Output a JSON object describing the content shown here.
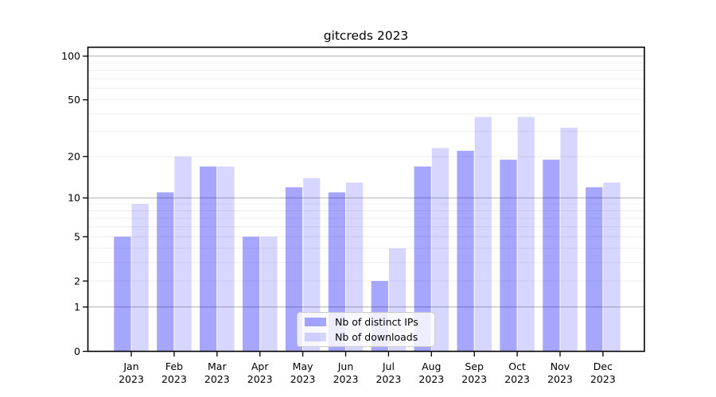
{
  "chart_data": {
    "type": "bar",
    "title": "gitcreds 2023",
    "categories": [
      "Jan",
      "Feb",
      "Mar",
      "Apr",
      "May",
      "Jun",
      "Jul",
      "Aug",
      "Sep",
      "Oct",
      "Nov",
      "Dec"
    ],
    "x_tick_second_line": "2023",
    "series": [
      {
        "name": "Nb of distinct IPs",
        "color": "#0000ff59",
        "values": [
          5,
          11,
          17,
          5,
          12,
          11,
          2,
          17,
          22,
          19,
          19,
          12
        ]
      },
      {
        "name": "Nb of downloads",
        "color": "#0000ff29",
        "values": [
          9,
          20,
          17,
          5,
          14,
          13,
          4,
          23,
          38,
          38,
          32,
          13
        ]
      }
    ],
    "xlabel": "",
    "ylabel": "",
    "y_scale": "log1p",
    "ylim": [
      0,
      115
    ],
    "y_tick_values": [
      0,
      1,
      2,
      5,
      10,
      20,
      50,
      100
    ],
    "y_tick_labels": [
      "0",
      "1",
      "2",
      "5",
      "10",
      "20",
      "50",
      "100"
    ],
    "grid_major": [
      1,
      10,
      100
    ],
    "grid_minor": [
      2,
      3,
      4,
      5,
      6,
      7,
      8,
      9,
      20,
      30,
      40,
      50,
      60,
      70,
      80,
      90
    ],
    "legend_position": "lower center inside",
    "colors": {
      "bar_distinct_ips_solid": "#a6a6ff",
      "bar_downloads_solid": "#d9d9ff",
      "grid_major": "#b0b0b0",
      "grid_minor": "#ebebeb",
      "axis": "#000000",
      "legend_border": "#cccccc",
      "text": "#000000"
    }
  }
}
